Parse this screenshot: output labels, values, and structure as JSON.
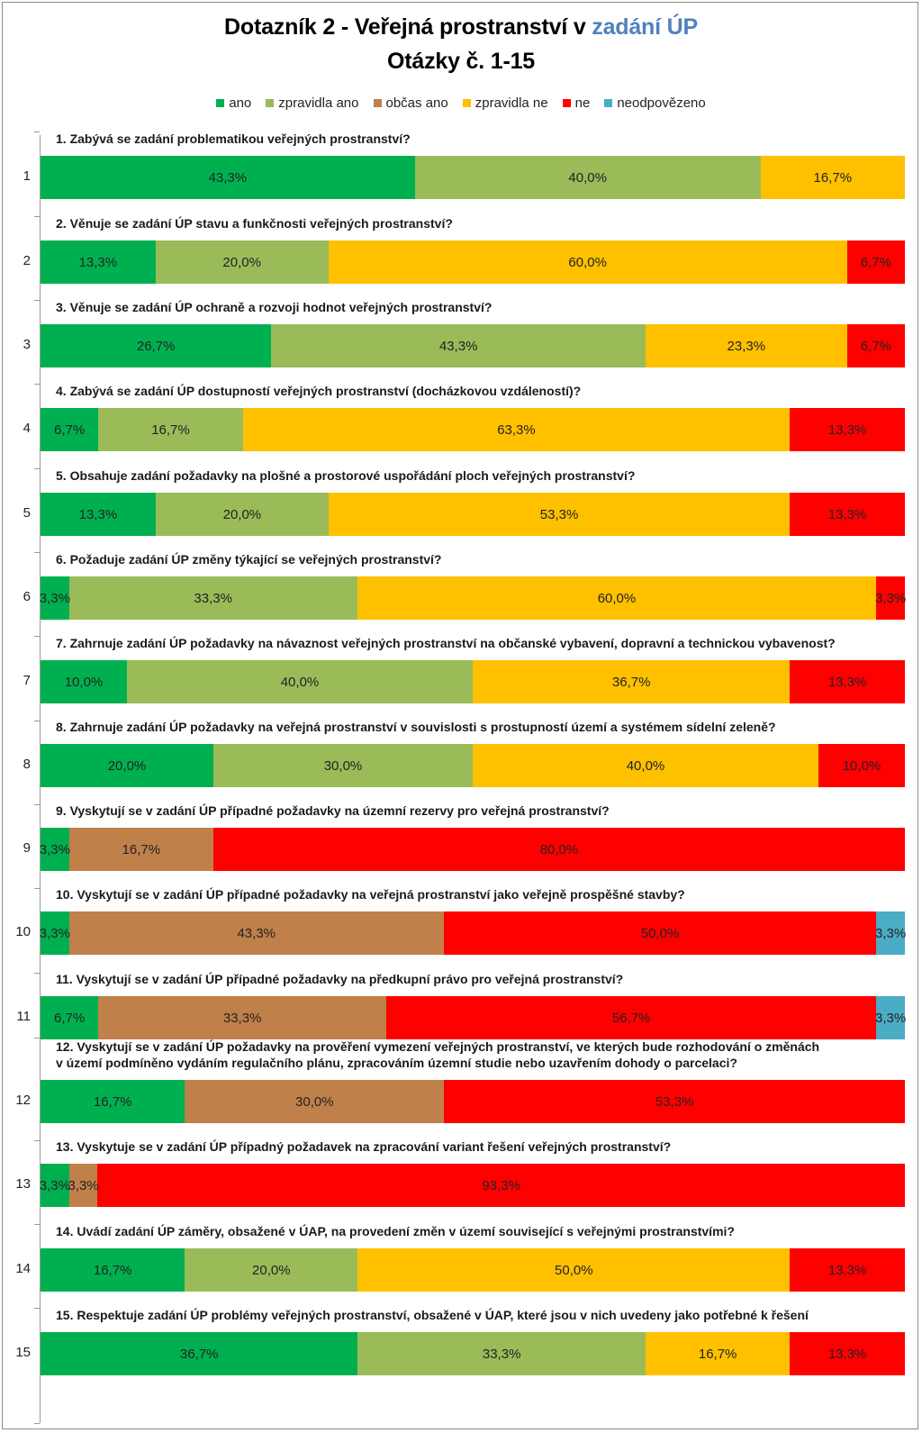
{
  "title": {
    "part1": "Dotazník 2 - Veřejná prostranství v ",
    "part2": "zadání ÚP",
    "line2": "Otázky č. 1-15"
  },
  "colors": {
    "ano": "#00b050",
    "zpravidla_ano": "#9bbb59",
    "obcas_ano": "#c0804a",
    "zpravidla_ne": "#ffc000",
    "ne": "#ff0000",
    "neodpovezeno": "#4bacc6"
  },
  "chart_data": {
    "type": "bar",
    "orientation": "horizontal",
    "stacked": "100%",
    "legend_position": "top",
    "series": [
      {
        "name": "ano",
        "color": "#00b050",
        "values": [
          43.3,
          13.3,
          26.7,
          6.7,
          13.3,
          3.3,
          10.0,
          20.0,
          3.3,
          3.3,
          6.7,
          16.7,
          3.3,
          16.7,
          36.7
        ]
      },
      {
        "name": "zpravidla ano",
        "color": "#9bbb59",
        "values": [
          40.0,
          20.0,
          43.3,
          16.7,
          20.0,
          33.3,
          40.0,
          30.0,
          0,
          0,
          0,
          0,
          0,
          20.0,
          33.3
        ]
      },
      {
        "name": "občas ano",
        "color": "#c0804a",
        "values": [
          0,
          0,
          0,
          0,
          0,
          0,
          0,
          0,
          16.7,
          43.3,
          33.3,
          30.0,
          3.3,
          0,
          0
        ]
      },
      {
        "name": "zpravidla ne",
        "color": "#ffc000",
        "values": [
          16.7,
          60.0,
          23.3,
          63.3,
          53.3,
          60.0,
          36.7,
          40.0,
          0,
          0,
          0,
          0,
          0,
          50.0,
          16.7
        ]
      },
      {
        "name": "ne",
        "color": "#ff0000",
        "values": [
          0,
          6.7,
          6.7,
          13.3,
          13.3,
          3.3,
          13.3,
          10.0,
          80.0,
          50.0,
          56.7,
          53.3,
          93.3,
          13.3,
          13.3
        ]
      },
      {
        "name": "neodpovězeno",
        "color": "#4bacc6",
        "values": [
          0,
          0,
          0,
          0,
          0,
          0,
          0,
          0,
          0,
          3.3,
          3.3,
          0,
          0,
          0,
          0
        ]
      }
    ],
    "rows": [
      {
        "num": "1",
        "question": [
          "1. Zabývá se zadání problematikou veřejných prostranství?"
        ]
      },
      {
        "num": "2",
        "question": [
          "2. Věnuje se zadání ÚP stavu a funkčnosti veřejných prostranství?"
        ]
      },
      {
        "num": "3",
        "question": [
          "3. Věnuje se zadání ÚP ochraně a rozvoji hodnot veřejných prostranství?"
        ]
      },
      {
        "num": "4",
        "question": [
          "4. Zabývá se zadání ÚP dostupností veřejných prostranství (docházkovou vzdáleností)?"
        ]
      },
      {
        "num": "5",
        "question": [
          "5. Obsahuje zadání požadavky na plošné a prostorové uspořádání ploch veřejných prostranství?"
        ]
      },
      {
        "num": "6",
        "question": [
          "6. Požaduje zadání ÚP změny týkající se veřejných prostranství?"
        ]
      },
      {
        "num": "7",
        "question": [
          "7. Zahrnuje zadání ÚP požadavky na návaznost veřejných prostranství na občanské vybavení, dopravní a technickou vybavenost?"
        ]
      },
      {
        "num": "8",
        "question": [
          "8. Zahrnuje zadání ÚP požadavky na veřejná prostranství v souvislosti s prostupností území a systémem sídelní zeleně?"
        ]
      },
      {
        "num": "9",
        "question": [
          "9. Vyskytují se v zadání ÚP případné požadavky na územní rezervy pro veřejná prostranství?"
        ]
      },
      {
        "num": "10",
        "question": [
          "10. Vyskytují se v zadání ÚP případné požadavky na veřejná prostranství jako veřejně prospěšné stavby?"
        ]
      },
      {
        "num": "11",
        "question": [
          "11. Vyskytují se v zadání ÚP případné požadavky na předkupní právo pro veřejná prostranství?"
        ]
      },
      {
        "num": "12",
        "question": [
          "12. Vyskytují se v zadání ÚP požadavky na prověření vymezení veřejných prostranství, ve kterých bude rozhodování o změnách",
          "v území podmíněno vydáním regulačního plánu, zpracováním územní studie nebo uzavřením dohody o parcelaci?"
        ]
      },
      {
        "num": "13",
        "question": [
          "13. Vyskytuje se v zadání ÚP případný požadavek na zpracování variant řešení veřejných prostranství?"
        ]
      },
      {
        "num": "14",
        "question": [
          "14. Uvádí zadání ÚP záměry, obsažené v ÚAP, na provedení změn v území související s veřejnými prostranstvími?"
        ]
      },
      {
        "num": "15",
        "question": [
          "15. Respektuje zadání ÚP problémy veřejných prostranství, obsažené v ÚAP, které jsou v nich uvedeny jako potřebné k řešení"
        ]
      }
    ]
  }
}
